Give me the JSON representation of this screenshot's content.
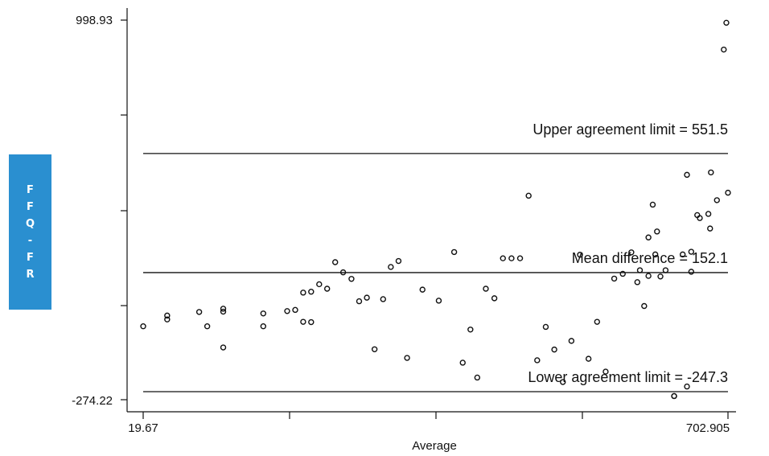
{
  "chart_data": {
    "type": "scatter",
    "title": "",
    "ylabel": "FFQ-FR",
    "xlabel": "Average",
    "xlim": [
      19.67,
      702.905
    ],
    "ylim": [
      -274.22,
      998.93
    ],
    "x_tick_labels": [
      "19.67",
      "702.905"
    ],
    "y_tick_labels": [
      "998.93",
      "-274.22"
    ],
    "reference_lines": [
      {
        "label": "Upper agreement limit = 551.5",
        "value": 551.5
      },
      {
        "label": "Mean difference = 152.1",
        "value": 152.1
      },
      {
        "label": "Lower agreement limit = -247.3",
        "value": -247.3
      }
    ],
    "points": [
      [
        19.7,
        -28
      ],
      [
        47.7,
        -5
      ],
      [
        47.7,
        8
      ],
      [
        85.1,
        20
      ],
      [
        94.5,
        -28
      ],
      [
        113.2,
        21
      ],
      [
        113.2,
        31
      ],
      [
        113.2,
        -99
      ],
      [
        160,
        -28
      ],
      [
        160,
        15
      ],
      [
        187.9,
        23
      ],
      [
        197.3,
        27
      ],
      [
        206.6,
        -13
      ],
      [
        206.6,
        85
      ],
      [
        215.9,
        -14
      ],
      [
        215.9,
        88
      ],
      [
        225.3,
        113
      ],
      [
        234.6,
        98
      ],
      [
        244,
        187
      ],
      [
        253.3,
        153
      ],
      [
        263,
        131
      ],
      [
        272,
        56
      ],
      [
        281,
        68
      ],
      [
        290,
        -105
      ],
      [
        300,
        63
      ],
      [
        309,
        171
      ],
      [
        318,
        191
      ],
      [
        328,
        -134
      ],
      [
        346,
        95
      ],
      [
        365,
        58
      ],
      [
        383,
        221
      ],
      [
        393,
        -150
      ],
      [
        402,
        -39
      ],
      [
        410,
        -200
      ],
      [
        420,
        98
      ],
      [
        430,
        66
      ],
      [
        440,
        200
      ],
      [
        450,
        200
      ],
      [
        460,
        200
      ],
      [
        470,
        410
      ],
      [
        480,
        -142
      ],
      [
        490,
        -30
      ],
      [
        500,
        -106
      ],
      [
        510,
        -215
      ],
      [
        520,
        -77
      ],
      [
        530,
        212
      ],
      [
        540,
        -137
      ],
      [
        550,
        -13
      ],
      [
        560,
        -180
      ],
      [
        570,
        132
      ],
      [
        580,
        148
      ],
      [
        590,
        220
      ],
      [
        600,
        160
      ],
      [
        610,
        141
      ],
      [
        618,
        213
      ],
      [
        624,
        139
      ],
      [
        630,
        160
      ],
      [
        640,
        -262
      ],
      [
        650,
        213
      ],
      [
        660,
        222
      ],
      [
        670,
        335
      ],
      [
        680,
        349
      ],
      [
        690,
        395
      ],
      [
        597,
        120
      ],
      [
        655,
        480
      ],
      [
        667,
        345
      ],
      [
        640,
        -262
      ],
      [
        655,
        -230
      ],
      [
        683,
        488
      ],
      [
        702.9,
        420
      ],
      [
        701,
        990
      ],
      [
        698,
        900
      ],
      [
        605,
        40
      ],
      [
        610,
        270
      ],
      [
        615,
        380
      ],
      [
        620,
        290
      ],
      [
        660,
        155
      ],
      [
        682,
        300
      ]
    ]
  },
  "ylabel_box": {
    "letters": [
      "F",
      "F",
      "Q",
      "-",
      "F",
      "R"
    ]
  }
}
